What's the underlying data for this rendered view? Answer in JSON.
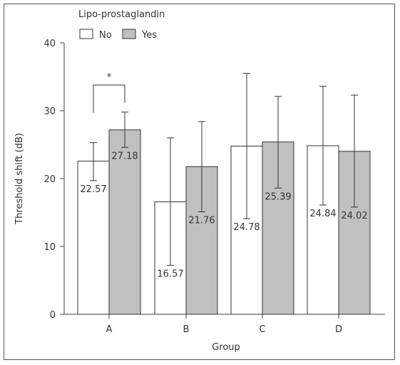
{
  "chart_data": {
    "type": "bar",
    "title": "",
    "xlabel": "Group",
    "ylabel": "Threshold shift (dB)",
    "ylim": [
      0,
      40
    ],
    "yticks": [
      0,
      10,
      20,
      30,
      40
    ],
    "categories": [
      "A",
      "B",
      "C",
      "D"
    ],
    "legend": {
      "title": "Lipo-prostaglandin",
      "placement": "top-left"
    },
    "series": [
      {
        "name": "No",
        "color": "#ffffff",
        "values": [
          22.57,
          16.57,
          24.78,
          24.84
        ],
        "labels": [
          "22.57",
          "16.57",
          "24.78",
          "24.84"
        ],
        "error_low": [
          19.7,
          7.2,
          14.1,
          16.1
        ],
        "error_high": [
          25.3,
          26.0,
          35.5,
          33.6
        ]
      },
      {
        "name": "Yes",
        "color": "#c0c0c0",
        "values": [
          27.18,
          21.76,
          25.39,
          24.02
        ],
        "labels": [
          "27.18",
          "21.76",
          "25.39",
          "24.02"
        ],
        "error_low": [
          24.6,
          15.1,
          18.6,
          15.8
        ],
        "error_high": [
          29.8,
          28.4,
          32.1,
          32.3
        ]
      }
    ],
    "annotations": [
      {
        "text": "*",
        "category": "A"
      }
    ]
  }
}
